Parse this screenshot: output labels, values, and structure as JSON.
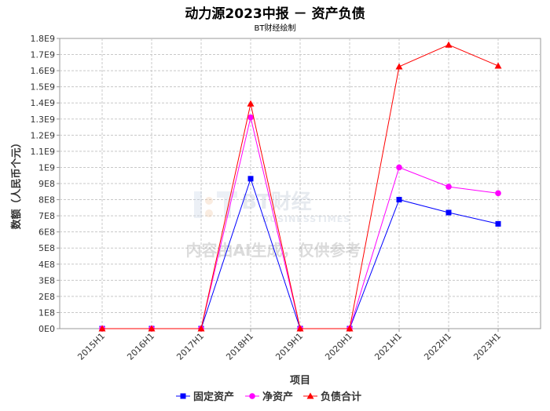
{
  "chart_data": {
    "type": "line",
    "title": "动力源2023中报 － 资产负债",
    "subtitle": "BT财经绘制",
    "xlabel": "项目",
    "ylabel": "数额（人民币个元）",
    "categories": [
      "2015H1",
      "2016H1",
      "2017H1",
      "2018H1",
      "2019H1",
      "2020H1",
      "2021H1",
      "2022H1",
      "2023H1"
    ],
    "yticks": [
      "0E0",
      "1E8",
      "2E8",
      "3E8",
      "4E8",
      "5E8",
      "6E8",
      "7E8",
      "8E8",
      "9E8",
      "1E9",
      "1.1E9",
      "1.2E9",
      "1.3E9",
      "1.4E9",
      "1.5E9",
      "1.6E9",
      "1.7E9",
      "1.8E9"
    ],
    "ylim": [
      0,
      1800000000
    ],
    "grid": true,
    "legend_position": "bottom",
    "series": [
      {
        "name": "固定资产",
        "color": "#0000ff",
        "marker": "square",
        "values": [
          0,
          0,
          0,
          930000000,
          0,
          0,
          800000000,
          720000000,
          650000000
        ]
      },
      {
        "name": "净资产",
        "color": "#ff00ff",
        "marker": "circle",
        "values": [
          0,
          0,
          0,
          1310000000,
          0,
          0,
          1000000000,
          880000000,
          840000000
        ]
      },
      {
        "name": "负债合计",
        "color": "#ff0000",
        "marker": "triangle",
        "values": [
          0,
          0,
          0,
          1395000000,
          0,
          0,
          1625000000,
          1760000000,
          1630000000
        ]
      }
    ]
  },
  "watermark": {
    "brand_cn": "BT财经",
    "brand_en": "BUSINESSTIMES",
    "notice": "内容由AI生成，仅供参考"
  }
}
